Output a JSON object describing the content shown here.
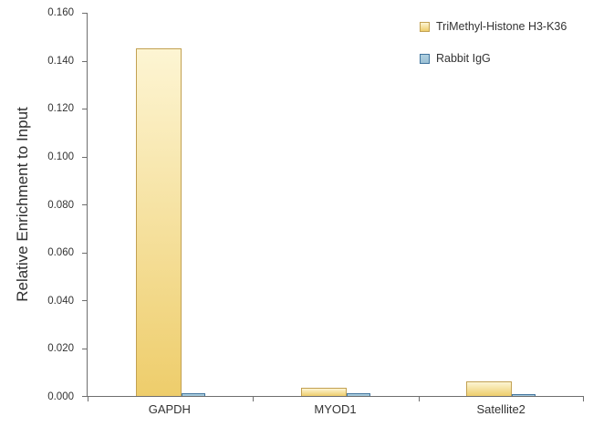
{
  "chart_data": {
    "type": "bar",
    "title": "",
    "xlabel": "",
    "ylabel": "Relative Enrichment to Input",
    "categories": [
      "GAPDH",
      "MYOD1",
      "Satellite2"
    ],
    "series": [
      {
        "name": "TriMethyl-Histone H3-K36",
        "values": [
          0.145,
          0.0035,
          0.006
        ],
        "fill_top": "#FDF5D3",
        "fill_bottom": "#EECD6B",
        "border": "#C2A152"
      },
      {
        "name": "Rabbit IgG",
        "values": [
          0.0012,
          0.001,
          0.0009
        ],
        "fill_top": "#AFD0E0",
        "fill_bottom": "#9CC1D5",
        "border": "#41759E"
      }
    ],
    "ylim": [
      0,
      0.16
    ],
    "yticks": [
      "0.000",
      "0.020",
      "0.040",
      "0.060",
      "0.080",
      "0.100",
      "0.120",
      "0.140",
      "0.160"
    ],
    "grid": false,
    "legend_position": "top-right",
    "axis_color": "#6E6E6E",
    "text_color": "#404040"
  }
}
